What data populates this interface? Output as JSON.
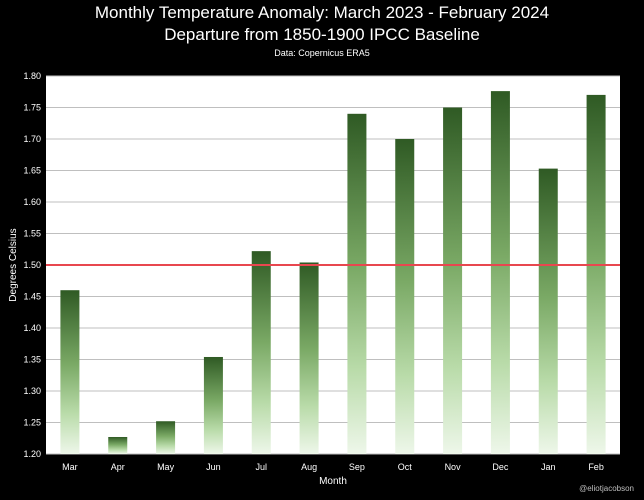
{
  "header": {
    "title": "Monthly Temperature Anomaly: March 2023 - February 2024",
    "subtitle": "Departure from 1850-1900 IPCC Baseline",
    "source": "Data: Copernicus ERA5"
  },
  "credit": "@eliotjacobson",
  "colors": {
    "background": "#000000",
    "plot_background": "#ffffff",
    "grid": "#bfbfbf",
    "bar_top": "#2f5a24",
    "bar_bottom": "#eef7ea",
    "threshold_line": "#e8474f"
  },
  "chart_data": {
    "type": "bar",
    "title": "Monthly Temperature Anomaly: March 2023 - February 2024",
    "subtitle": "Departure from 1850-1900 IPCC Baseline",
    "xlabel": "Month",
    "ylabel": "Degrees Celsius",
    "categories": [
      "Mar",
      "Apr",
      "May",
      "Jun",
      "Jul",
      "Aug",
      "Sep",
      "Oct",
      "Nov",
      "Dec",
      "Jan",
      "Feb"
    ],
    "values": [
      1.46,
      1.227,
      1.252,
      1.354,
      1.522,
      1.504,
      1.74,
      1.7,
      1.75,
      1.776,
      1.653,
      1.77
    ],
    "ylim": [
      1.2,
      1.8
    ],
    "yticks": [
      "1.20",
      "1.25",
      "1.30",
      "1.35",
      "1.40",
      "1.45",
      "1.50",
      "1.55",
      "1.60",
      "1.65",
      "1.70",
      "1.75",
      "1.80"
    ],
    "reference_line": 1.5,
    "grid": true,
    "legend": "none"
  }
}
